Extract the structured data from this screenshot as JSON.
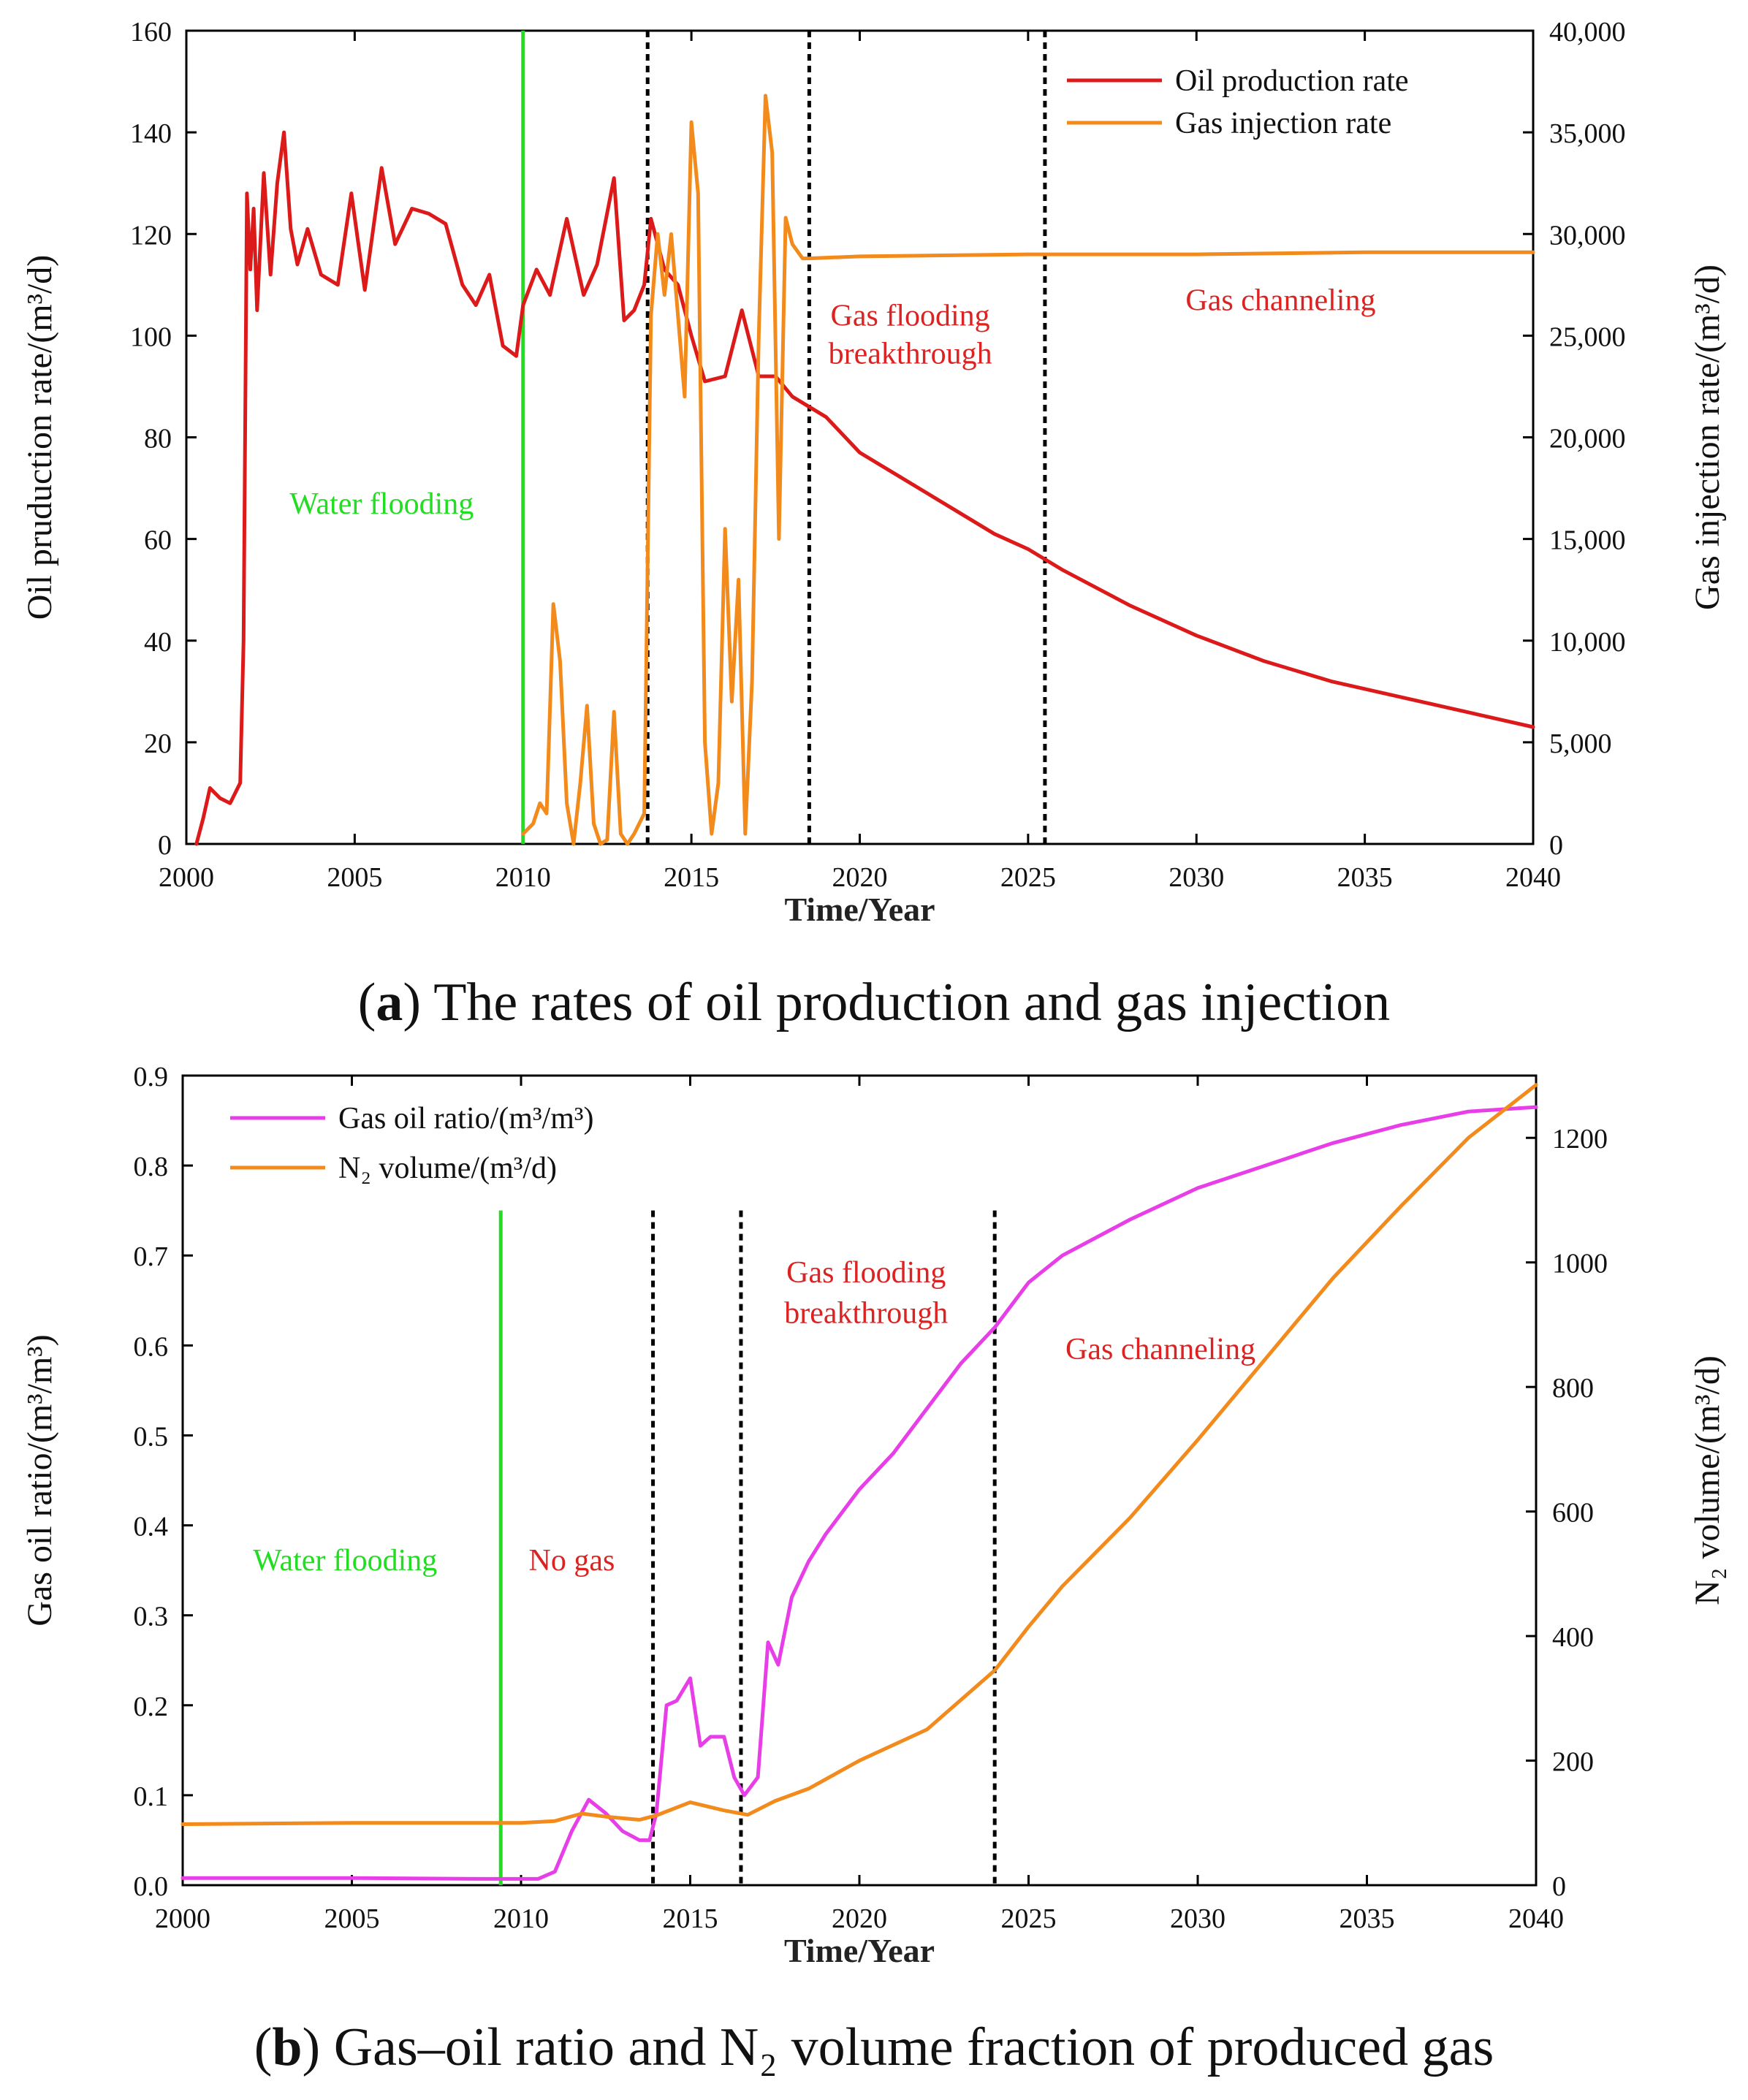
{
  "chart_data": [
    {
      "type": "line",
      "title": "",
      "xlabel": "Time/Year",
      "ylabel_left": "Oil pruduction rate/(m³/d)",
      "ylabel_right": "Gas injection rate/(m³/d)",
      "xlim": [
        2000,
        2040
      ],
      "ylim_left": [
        0,
        160
      ],
      "ylim_right": [
        0,
        40000
      ],
      "grid": false,
      "legend_position": "top-right",
      "x_ticks": [
        "2000",
        "2005",
        "2010",
        "2015",
        "2020",
        "2025",
        "2030",
        "2035",
        "2040"
      ],
      "y_ticks_left": [
        "0",
        "20",
        "40",
        "60",
        "80",
        "100",
        "120",
        "140",
        "160"
      ],
      "y_ticks_right": [
        "0",
        "5,000",
        "10,000",
        "15,000",
        "20,000",
        "25,000",
        "30,000",
        "35,000",
        "40,000"
      ],
      "series": [
        {
          "name": "Oil production rate",
          "axis": "left",
          "color": "#dd1a1a",
          "x": [
            2000.3,
            2000.5,
            2000.7,
            2001.0,
            2001.3,
            2001.6,
            2001.7,
            2001.8,
            2001.9,
            2002.0,
            2002.1,
            2002.3,
            2002.5,
            2002.7,
            2002.9,
            2003.1,
            2003.3,
            2003.6,
            2004.0,
            2004.5,
            2004.9,
            2005.3,
            2005.8,
            2006.2,
            2006.7,
            2007.2,
            2007.7,
            2008.2,
            2008.6,
            2009.0,
            2009.4,
            2009.8,
            2010.0,
            2010.4,
            2010.8,
            2011.3,
            2011.8,
            2012.2,
            2012.7,
            2013.0,
            2013.3,
            2013.6,
            2013.8,
            2014.2,
            2014.6,
            2015.0,
            2015.4,
            2016.0,
            2016.5,
            2017.0,
            2017.5,
            2018.0,
            2018.5,
            2019.0,
            2020.0,
            2021.0,
            2022.0,
            2023.0,
            2024.0,
            2025.0,
            2026.0,
            2028.0,
            2030.0,
            2032.0,
            2034.0,
            2036.0,
            2038.0,
            2040.0
          ],
          "values": [
            0,
            5,
            11,
            9,
            8,
            12,
            40,
            128,
            113,
            125,
            105,
            132,
            112,
            130,
            140,
            121,
            114,
            121,
            112,
            110,
            128,
            109,
            133,
            118,
            125,
            124,
            122,
            110,
            106,
            112,
            98,
            96,
            106,
            113,
            108,
            123,
            108,
            114,
            131,
            103,
            105,
            110,
            123,
            113,
            110,
            100,
            91,
            92,
            105,
            92,
            92,
            88,
            86,
            84,
            77,
            73,
            69,
            65,
            61,
            58,
            54,
            47,
            41,
            36,
            32,
            29,
            26,
            23
          ]
        },
        {
          "name": "Gas injection rate",
          "axis": "right",
          "color": "#f28a1c",
          "x": [
            2010.0,
            2010.3,
            2010.5,
            2010.7,
            2010.9,
            2011.1,
            2011.3,
            2011.5,
            2011.7,
            2011.9,
            2012.1,
            2012.3,
            2012.5,
            2012.7,
            2012.9,
            2013.1,
            2013.3,
            2013.6,
            2013.8,
            2014.0,
            2014.2,
            2014.4,
            2014.6,
            2014.8,
            2015.0,
            2015.2,
            2015.4,
            2015.6,
            2015.8,
            2016.0,
            2016.2,
            2016.4,
            2016.6,
            2016.8,
            2017.0,
            2017.2,
            2017.4,
            2017.6,
            2017.8,
            2018.0,
            2018.3,
            2018.5,
            2020.0,
            2025.0,
            2030.0,
            2035.0,
            2040.0
          ],
          "values": [
            500,
            1000,
            2000,
            1500,
            11800,
            9000,
            2000,
            0,
            3000,
            6800,
            1000,
            0,
            200,
            6500,
            500,
            0,
            500,
            1500,
            26000,
            30000,
            27000,
            30000,
            26000,
            22000,
            35500,
            32000,
            5000,
            500,
            3000,
            15500,
            7000,
            13000,
            500,
            8000,
            25000,
            36800,
            34000,
            15000,
            30800,
            29500,
            28800,
            28800,
            28900,
            29000,
            29000,
            29100,
            29100
          ]
        }
      ],
      "vertical_markers": [
        {
          "x": 2010.0,
          "style": "solid",
          "color": "#22dd22"
        },
        {
          "x": 2013.7,
          "style": "dotted",
          "color": "#000000"
        },
        {
          "x": 2018.5,
          "style": "dotted",
          "color": "#000000"
        },
        {
          "x": 2025.5,
          "style": "dotted",
          "color": "#000000"
        }
      ],
      "annotations": [
        {
          "text": "Water flooding",
          "x": 2005.8,
          "y": 65,
          "color": "#22dd22"
        },
        {
          "text": "Gas flooding",
          "x": 2021.5,
          "y": 102,
          "color": "#dd2222"
        },
        {
          "text": "breakthrough",
          "x": 2021.5,
          "y": 94.5,
          "color": "#dd2222"
        },
        {
          "text": "Gas channeling",
          "x": 2032.5,
          "y": 105,
          "color": "#dd2222"
        }
      ]
    },
    {
      "type": "line",
      "title": "",
      "xlabel": "Time/Year",
      "ylabel_left": "Gas oil ratio/(m³/m³)",
      "ylabel_right": "N₂ volume/(m³/d)",
      "xlim": [
        2000,
        2040
      ],
      "ylim_left": [
        0,
        0.9
      ],
      "ylim_right": [
        0,
        1300
      ],
      "grid": false,
      "legend_position": "top-left",
      "x_ticks": [
        "2000",
        "2005",
        "2010",
        "2015",
        "2020",
        "2025",
        "2030",
        "2035",
        "2040"
      ],
      "y_ticks_left": [
        "0.0",
        "0.1",
        "0.2",
        "0.3",
        "0.4",
        "0.5",
        "0.6",
        "0.7",
        "0.8",
        "0.9"
      ],
      "y_ticks_right": [
        "0",
        "200",
        "400",
        "600",
        "800",
        "1000",
        "1200"
      ],
      "series": [
        {
          "name": "Gas oil ratio/(m³/m³)",
          "axis": "left",
          "color": "#e83ee8",
          "x": [
            2000.0,
            2005.0,
            2009.0,
            2010.5,
            2011.0,
            2011.5,
            2012.0,
            2012.5,
            2013.0,
            2013.5,
            2013.8,
            2014.0,
            2014.3,
            2014.6,
            2015.0,
            2015.3,
            2015.6,
            2016.0,
            2016.3,
            2016.6,
            2017.0,
            2017.3,
            2017.6,
            2018.0,
            2018.5,
            2019.0,
            2020.0,
            2021.0,
            2022.0,
            2023.0,
            2024.0,
            2025.0,
            2026.0,
            2028.0,
            2030.0,
            2032.0,
            2034.0,
            2036.0,
            2038.0,
            2040.0
          ],
          "values": [
            0.008,
            0.008,
            0.007,
            0.007,
            0.015,
            0.06,
            0.095,
            0.08,
            0.06,
            0.05,
            0.05,
            0.08,
            0.2,
            0.205,
            0.23,
            0.155,
            0.165,
            0.165,
            0.12,
            0.1,
            0.12,
            0.27,
            0.245,
            0.32,
            0.36,
            0.39,
            0.44,
            0.48,
            0.53,
            0.58,
            0.62,
            0.67,
            0.7,
            0.74,
            0.775,
            0.8,
            0.825,
            0.845,
            0.86,
            0.865
          ]
        },
        {
          "name": "N₂ volume/(m³/d)",
          "axis": "right",
          "color": "#f28a1c",
          "x": [
            2000.0,
            2005.0,
            2010.0,
            2011.0,
            2011.8,
            2012.5,
            2013.5,
            2014.0,
            2015.0,
            2016.0,
            2016.7,
            2017.5,
            2018.5,
            2020.0,
            2022.0,
            2024.0,
            2025.0,
            2026.0,
            2028.0,
            2030.0,
            2032.0,
            2034.0,
            2036.0,
            2038.0,
            2040.0
          ],
          "values": [
            98,
            100,
            100,
            103,
            115,
            110,
            105,
            112,
            133,
            120,
            113,
            135,
            155,
            200,
            250,
            345,
            415,
            480,
            590,
            715,
            845,
            975,
            1090,
            1200,
            1285
          ]
        }
      ],
      "vertical_markers": [
        {
          "x": 2009.4,
          "style": "solid",
          "color": "#22dd22"
        },
        {
          "x": 2013.9,
          "style": "dotted",
          "color": "#000000"
        },
        {
          "x": 2016.5,
          "style": "dotted",
          "color": "#000000"
        },
        {
          "x": 2024.0,
          "style": "dotted",
          "color": "#000000"
        }
      ],
      "annotations": [
        {
          "text": "Water flooding",
          "x": 2004.8,
          "y": 0.35,
          "color": "#22dd22"
        },
        {
          "text": "No gas",
          "x": 2011.5,
          "y": 0.35,
          "color": "#dd2222"
        },
        {
          "text": "Gas flooding",
          "x": 2020.2,
          "y": 0.67,
          "color": "#dd2222"
        },
        {
          "text": "breakthrough",
          "x": 2020.2,
          "y": 0.625,
          "color": "#dd2222"
        },
        {
          "text": "Gas channeling",
          "x": 2028.9,
          "y": 0.585,
          "color": "#dd2222"
        }
      ]
    }
  ],
  "captions": {
    "a_label": "a",
    "a_text": " The rates of oil production and gas injection",
    "b_label": "b",
    "b_text": " Gas–oil ratio and N₂ volume fraction of produced gas"
  }
}
